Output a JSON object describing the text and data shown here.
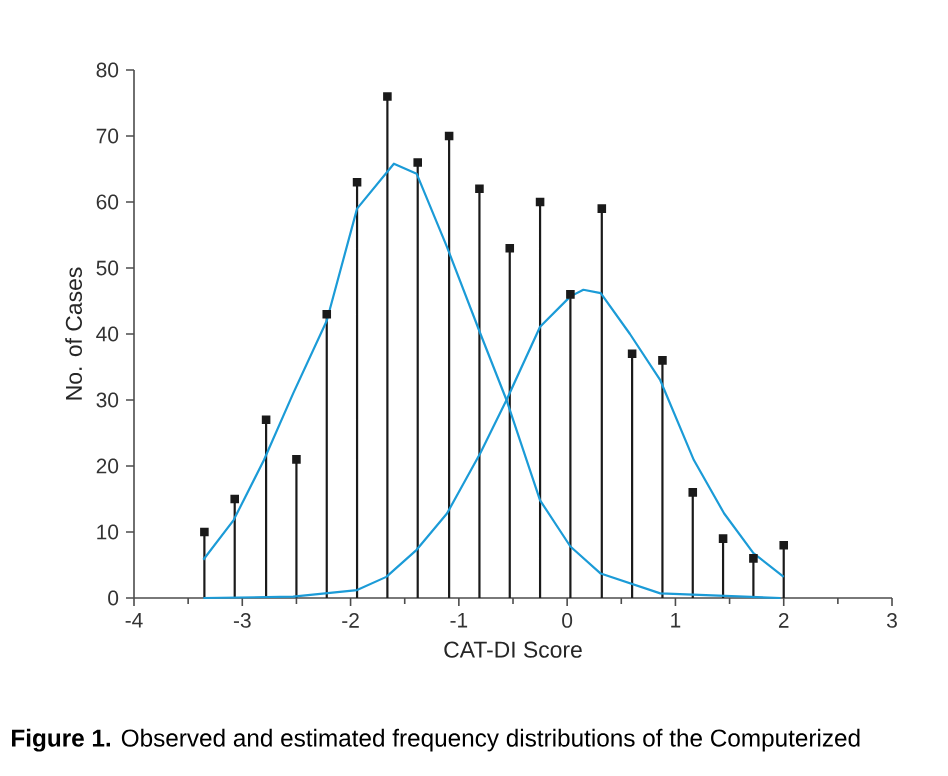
{
  "chart_data": {
    "type": "lollipop",
    "xlabel": "CAT-DI Score",
    "ylabel": "No. of Cases",
    "annotations": [
      "**Figure 1.** Observed and estimated frequency distributions of the Computerized"
    ],
    "xlim": [
      -4,
      3
    ],
    "xticks": [
      -4,
      -3,
      -2,
      -1,
      0,
      1,
      2,
      3
    ],
    "ylim": [
      0,
      80
    ],
    "yticks": [
      0,
      10,
      20,
      30,
      40,
      50,
      60,
      70,
      80
    ],
    "grid": false,
    "series": [
      {
        "color": "#1a1a1a",
        "marker": "square",
        "x": [
          -3.35,
          -3.07,
          -2.78,
          -2.5,
          -2.22,
          -1.94,
          -1.66,
          -1.38,
          -1.09,
          -0.81,
          -0.53,
          -0.25,
          0.03,
          0.32,
          0.6,
          0.88,
          1.16,
          1.44,
          1.72,
          2.0
        ],
        "values": [
          10,
          15,
          27,
          21,
          43,
          63,
          76,
          66,
          70,
          62,
          53,
          60,
          46,
          59,
          37,
          36,
          16,
          9,
          6,
          8
        ]
      },
      {
        "type": "line",
        "color": "#1b9bd7",
        "marker": "none",
        "x": [
          -3.36,
          -3.08,
          -2.8,
          -2.53,
          -2.22,
          -1.94,
          -1.6,
          -1.39,
          -1.11,
          -0.8,
          -0.56,
          -0.25,
          0.03,
          0.31,
          0.86,
          1.97
        ],
        "values": [
          5.8,
          11.8,
          20.9,
          31,
          42,
          59,
          65.8,
          64.3,
          53.2,
          40,
          30,
          14.8,
          7.8,
          3.7,
          0.7,
          0
        ]
      },
      {
        "type": "line",
        "color": "#1b9bd7",
        "marker": "none",
        "x": [
          -3.36,
          -2.53,
          -1.94,
          -1.67,
          -1.39,
          -1.11,
          -0.8,
          -0.56,
          -0.25,
          0.03,
          0.15,
          0.31,
          0.58,
          0.86,
          1.17,
          1.45,
          1.72,
          2.0
        ],
        "values": [
          0,
          0.2,
          1.2,
          3.2,
          7.3,
          12.8,
          22,
          30,
          41.1,
          45.7,
          46.7,
          46.2,
          40,
          33,
          20.9,
          12.8,
          6.8,
          3.2
        ]
      }
    ]
  }
}
